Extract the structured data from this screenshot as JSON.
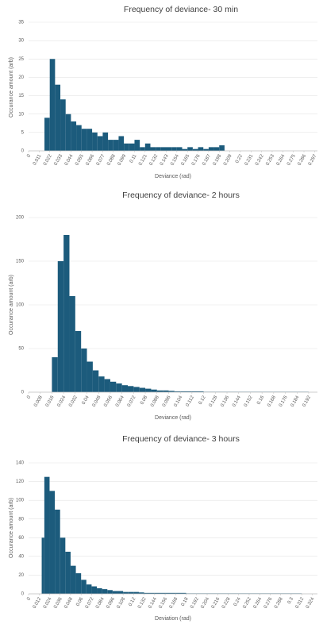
{
  "chart_data": [
    {
      "type": "bar",
      "title": "Frequency of deviance- 30 min",
      "x_label": "Deviance (rad)",
      "y_label": "Occurance amount (arb)",
      "color": "#1c5b7c",
      "grid": true,
      "x": [
        0.0165,
        0.022,
        0.0275,
        0.033,
        0.0385,
        0.044,
        0.0495,
        0.055,
        0.0605,
        0.066,
        0.0715,
        0.077,
        0.0825,
        0.088,
        0.0935,
        0.099,
        0.1045,
        0.11,
        0.1155,
        0.121,
        0.1265,
        0.132,
        0.1375,
        0.143,
        0.1485,
        0.154,
        0.1595,
        0.165,
        0.1705,
        0.176,
        0.1815,
        0.187,
        0.1925,
        0.198
      ],
      "values": [
        9,
        25,
        18,
        14,
        10,
        8,
        7,
        6,
        6,
        5,
        4,
        5,
        3,
        3,
        4,
        2,
        2,
        3,
        1,
        2,
        1,
        1,
        1,
        1,
        1,
        1,
        0.5,
        1,
        0.5,
        1,
        0.5,
        1,
        1,
        1.5
      ],
      "xlim": [
        0,
        0.3
      ],
      "xticks": [
        0,
        0.011,
        0.022,
        0.033,
        0.044,
        0.055,
        0.066,
        0.077,
        0.088,
        0.099,
        0.11,
        0.121,
        0.132,
        0.143,
        0.154,
        0.165,
        0.176,
        0.187,
        0.198,
        0.209,
        0.22,
        0.231,
        0.242,
        0.253,
        0.264,
        0.275,
        0.286,
        0.297
      ],
      "ylim": [
        0,
        35
      ],
      "yticks": [
        0,
        5,
        10,
        15,
        20,
        25,
        30,
        35
      ]
    },
    {
      "type": "bar",
      "title": "Frequency of deviance- 2 hours",
      "x_label": "Deviance (rad)",
      "y_label": "Occurance amount (arb)",
      "color": "#1c5b7c",
      "grid": true,
      "x": [
        0.016,
        0.02,
        0.024,
        0.028,
        0.032,
        0.036,
        0.04,
        0.044,
        0.048,
        0.052,
        0.056,
        0.06,
        0.064,
        0.068,
        0.072,
        0.076,
        0.08,
        0.084,
        0.088,
        0.092,
        0.096,
        0.1,
        0.104,
        0.112,
        0.12,
        0.128,
        0.136,
        0.144,
        0.152,
        0.16,
        0.168,
        0.176,
        0.184
      ],
      "values": [
        40,
        150,
        180,
        110,
        70,
        50,
        35,
        25,
        18,
        15,
        12,
        10,
        8,
        7,
        6,
        5,
        4,
        3,
        2,
        2,
        1.5,
        1,
        1,
        1,
        0.5,
        0.5,
        0.5,
        0.5,
        0.5,
        0.5,
        0.5,
        0.5,
        0.5
      ],
      "xlim": [
        0,
        0.198
      ],
      "xticks": [
        0,
        0.008,
        0.016,
        0.024,
        0.032,
        0.04,
        0.048,
        0.056,
        0.064,
        0.072,
        0.08,
        0.088,
        0.096,
        0.104,
        0.112,
        0.12,
        0.128,
        0.136,
        0.144,
        0.152,
        0.16,
        0.168,
        0.176,
        0.184,
        0.192
      ],
      "ylim": [
        0,
        200
      ],
      "yticks": [
        0,
        50,
        100,
        150,
        200
      ]
    },
    {
      "type": "bar",
      "title": "Frequency of deviance- 3 hours",
      "x_label": "Deviation (rad)",
      "y_label": "Occurance amount (arb)",
      "color": "#1c5b7c",
      "grid": true,
      "x": [
        0.015,
        0.018,
        0.024,
        0.03,
        0.036,
        0.042,
        0.048,
        0.054,
        0.06,
        0.066,
        0.072,
        0.078,
        0.084,
        0.09,
        0.096,
        0.102,
        0.108,
        0.114,
        0.12,
        0.126,
        0.132,
        0.144,
        0.156,
        0.168,
        0.18,
        0.192,
        0.204,
        0.216,
        0.228,
        0.24,
        0.252,
        0.264,
        0.276,
        0.288,
        0.3
      ],
      "values": [
        60,
        125,
        110,
        90,
        60,
        45,
        30,
        22,
        15,
        10,
        8,
        6,
        5,
        4,
        3,
        3,
        2,
        2,
        2,
        1.5,
        1,
        1,
        1,
        1,
        0.5,
        0.5,
        0.5,
        0.5,
        0.5,
        0.5,
        0.5,
        0.5,
        0.5,
        0.5,
        0.5
      ],
      "xlim": [
        0,
        0.33
      ],
      "xticks": [
        0,
        0.012,
        0.024,
        0.036,
        0.048,
        0.06,
        0.072,
        0.084,
        0.096,
        0.108,
        0.12,
        0.132,
        0.144,
        0.156,
        0.168,
        0.18,
        0.192,
        0.204,
        0.216,
        0.228,
        0.24,
        0.252,
        0.264,
        0.276,
        0.288,
        0.3,
        0.312,
        0.324
      ],
      "ylim": [
        0,
        140
      ],
      "yticks": [
        0,
        20,
        40,
        60,
        80,
        100,
        120,
        140
      ]
    }
  ]
}
